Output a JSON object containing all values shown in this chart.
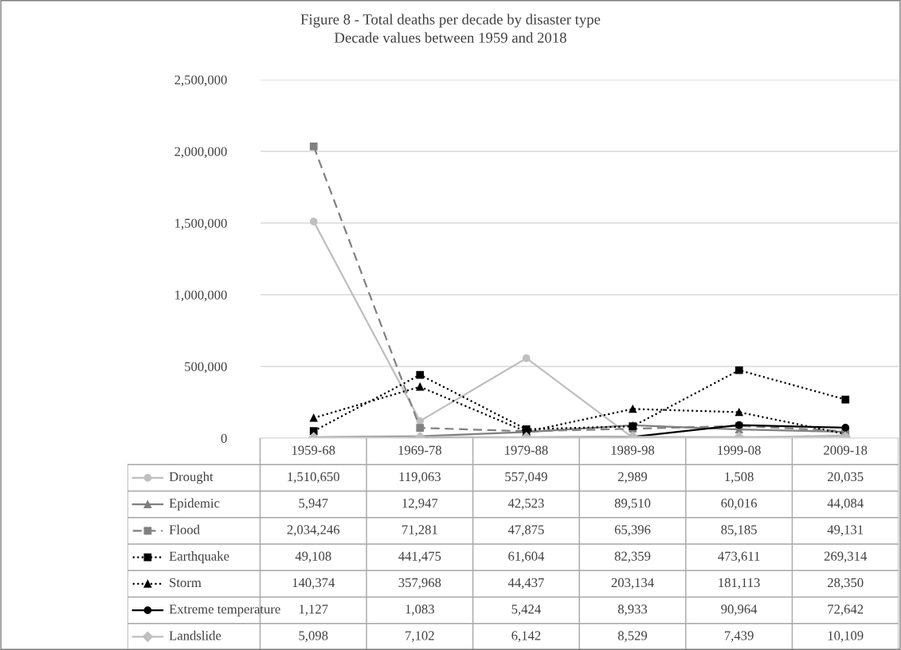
{
  "chart_data": {
    "type": "line",
    "title": "Figure 8 - Total deaths per decade by disaster type",
    "subtitle": "Decade values between 1959 and 2018",
    "categories": [
      "1959-68",
      "1969-78",
      "1979-88",
      "1989-98",
      "1999-08",
      "2009-18"
    ],
    "series": [
      {
        "name": "Drought",
        "color": "#bfbfbf",
        "marker": "circle",
        "line_style": "solid",
        "values": [
          1510650,
          119063,
          557049,
          2989,
          1508,
          20035
        ],
        "value_labels": [
          "1,510,650",
          "119,063",
          "557,049",
          "2,989",
          "1,508",
          "20,035"
        ]
      },
      {
        "name": "Epidemic",
        "color": "#7f7f7f",
        "marker": "triangle",
        "line_style": "solid",
        "values": [
          5947,
          12947,
          42523,
          89510,
          60016,
          44084
        ],
        "value_labels": [
          "5,947",
          "12,947",
          "42,523",
          "89,510",
          "60,016",
          "44,084"
        ]
      },
      {
        "name": "Flood",
        "color": "#808080",
        "marker": "square",
        "line_style": "dashed",
        "values": [
          2034246,
          71281,
          47875,
          65396,
          85185,
          49131
        ],
        "value_labels": [
          "2,034,246",
          "71,281",
          "47,875",
          "65,396",
          "85,185",
          "49,131"
        ]
      },
      {
        "name": "Earthquake",
        "color": "#000000",
        "marker": "square",
        "line_style": "dotted",
        "values": [
          49108,
          441475,
          61604,
          82359,
          473611,
          269314
        ],
        "value_labels": [
          "49,108",
          "441,475",
          "61,604",
          "82,359",
          "473,611",
          "269,314"
        ]
      },
      {
        "name": "Storm",
        "color": "#000000",
        "marker": "triangle",
        "line_style": "dotted",
        "values": [
          140374,
          357968,
          44437,
          203134,
          181113,
          28350
        ],
        "value_labels": [
          "140,374",
          "357,968",
          "44,437",
          "203,134",
          "181,113",
          "28,350"
        ]
      },
      {
        "name": "Extreme temperature",
        "color": "#000000",
        "marker": "circle",
        "line_style": "solid",
        "values": [
          1127,
          1083,
          5424,
          8933,
          90964,
          72642
        ],
        "value_labels": [
          "1,127",
          "1,083",
          "5,424",
          "8,933",
          "90,964",
          "72,642"
        ]
      },
      {
        "name": "Landslide",
        "color": "#bfbfbf",
        "marker": "diamond",
        "line_style": "solid",
        "values": [
          5098,
          7102,
          6142,
          8529,
          7439,
          10109
        ],
        "value_labels": [
          "5,098",
          "7,102",
          "6,142",
          "8,529",
          "7,439",
          "10,109"
        ]
      }
    ],
    "ylim": [
      0,
      2500000
    ],
    "yticks": [
      {
        "value": 0,
        "label": "0"
      },
      {
        "value": 500000,
        "label": "500,000"
      },
      {
        "value": 1000000,
        "label": "1,000,000"
      },
      {
        "value": 1500000,
        "label": "1,500,000"
      },
      {
        "value": 2000000,
        "label": "2,000,000"
      },
      {
        "value": 2500000,
        "label": "2,500,000"
      }
    ],
    "grid": "y",
    "legend": "bottom"
  }
}
